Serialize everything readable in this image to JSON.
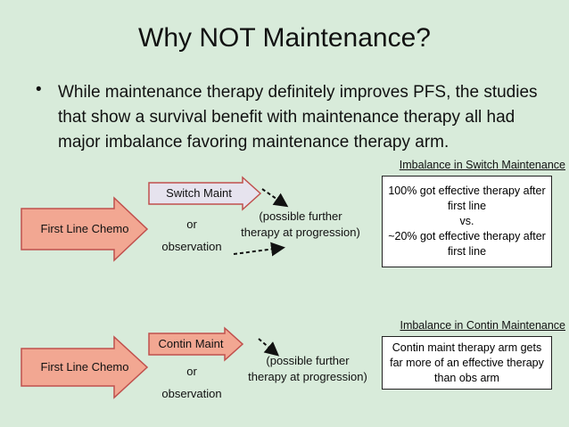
{
  "title": "Why NOT Maintenance?",
  "bullet": "While maintenance therapy definitely improves PFS, the studies that show a survival benefit with maintenance therapy all had major imbalance favoring maintenance therapy arm.",
  "diagrams": [
    {
      "first_line": "First Line Chemo",
      "maint": "Switch Maint",
      "or": "or",
      "alt": "observation",
      "note": [
        "(possible further",
        "therapy at progression)"
      ],
      "heading": "Imbalance in Switch Maintenance",
      "box": [
        "100% got effective therapy after first line",
        "vs.",
        "~20% got effective therapy after first line"
      ]
    },
    {
      "first_line": "First Line Chemo",
      "maint": "Contin Maint",
      "or": "or",
      "alt": "observation",
      "note": [
        "(possible further",
        "therapy at progression)"
      ],
      "heading": "Imbalance in Contin Maintenance",
      "box": [
        "Contin maint therapy arm gets far more of an effective therapy than obs arm"
      ]
    }
  ]
}
